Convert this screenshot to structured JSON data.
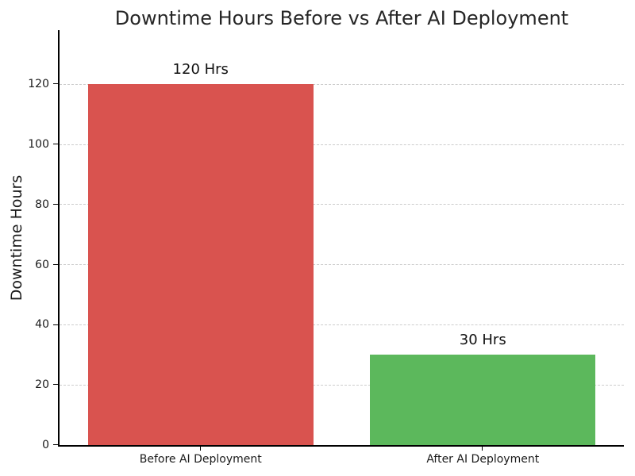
{
  "chart_data": {
    "type": "bar",
    "title": "Downtime Hours Before vs After AI Deployment",
    "ylabel": "Downtime Hours",
    "xlabel": "",
    "categories": [
      "Before AI Deployment",
      "After AI Deployment"
    ],
    "values": [
      120,
      30
    ],
    "bar_labels": [
      "120 Hrs",
      "30 Hrs"
    ],
    "bar_colors": [
      "#d9534f",
      "#5cb85c"
    ],
    "yticks": [
      0,
      20,
      40,
      60,
      80,
      100,
      120
    ],
    "ylim": [
      0,
      138
    ],
    "grid": {
      "axis": "y",
      "style": "dashed",
      "color": "#cccccc"
    },
    "legend": "none",
    "background": "#ffffff",
    "text_color": "#262626"
  }
}
